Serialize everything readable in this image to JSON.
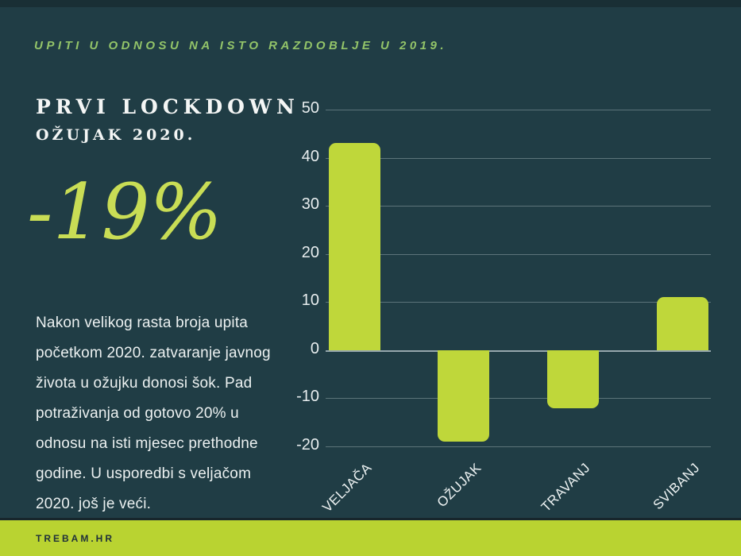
{
  "header": {
    "kicker": "UPITI U ODNOSU NA ISTO RAZDOBLJE U 2019."
  },
  "panel": {
    "title": "PRVI LOCKDOWN",
    "subtitle": "OŽUJAK 2020.",
    "big_number": "-19%",
    "paragraph": "Nakon velikog rasta broja upita početkom 2020. zatvaranje javnog života u ožujku donosi šok. Pad potraživanja od gotovo 20% u odnosu na isti mjesec prethodne godine. U usporedbi s veljačom 2020.  još je veći."
  },
  "footer": {
    "brand": "TREBAM.HR"
  },
  "colors": {
    "background": "#203d45",
    "bar_green": "#bfd73a",
    "footer_green": "#b9d331",
    "big_number_green": "#c9dd55",
    "kicker_green": "#93c469",
    "text_white": "#ecf1f1",
    "footer_text_dark": "#20313a"
  },
  "chart_data": {
    "type": "bar",
    "categories": [
      "VELJAČA",
      "OŽUJAK",
      "TRAVANJ",
      "SVIBANJ"
    ],
    "values": [
      43,
      -19,
      -12,
      11
    ],
    "title": "",
    "xlabel": "",
    "ylabel": "",
    "ylim": [
      -20,
      50
    ],
    "yticks": [
      50,
      40,
      30,
      20,
      10,
      0,
      -10,
      -20
    ],
    "grid": true,
    "legend": false,
    "bar_color": "#bfd73a"
  }
}
